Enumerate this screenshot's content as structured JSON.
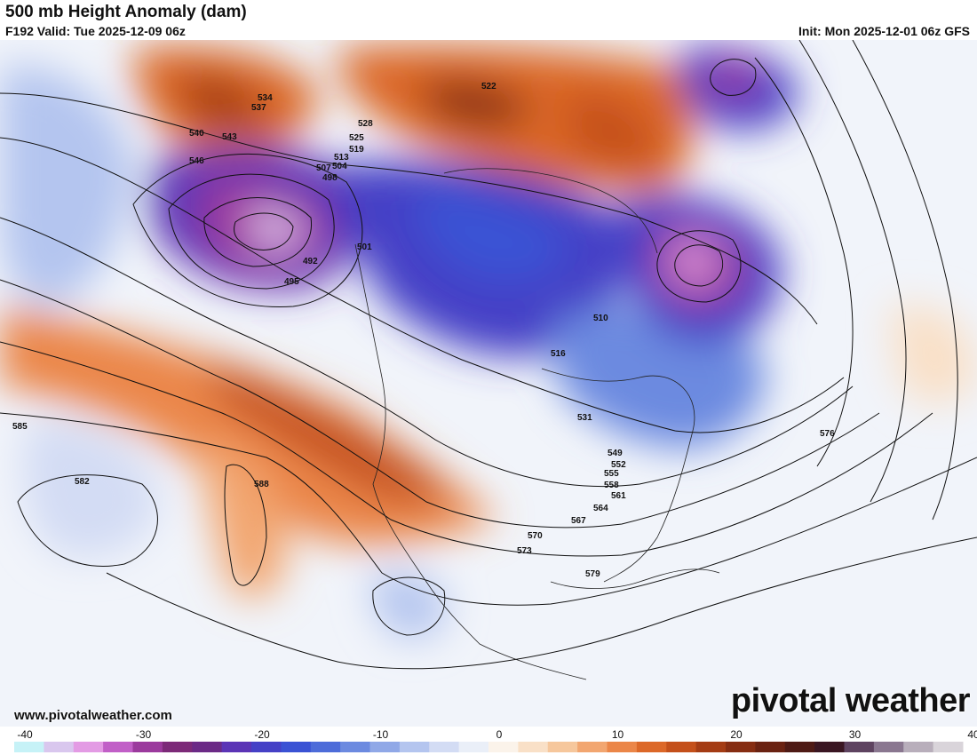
{
  "header": {
    "title": "500 mb Height Anomaly (dam)",
    "valid": "F192 Valid: Tue 2025-12-09 06z",
    "init": "Init: Mon 2025-12-01 06z GFS"
  },
  "footer": {
    "site": "www.pivotalweather.com",
    "brand": "pivotal weather"
  },
  "colorbar": {
    "ticks": [
      "-40",
      "-30",
      "-20",
      "-10",
      "0",
      "10",
      "20",
      "30",
      "40"
    ],
    "colors": [
      "#c6f2f7",
      "#d9c7ee",
      "#e39be4",
      "#c15fc7",
      "#9b3a9d",
      "#7c2a78",
      "#6b2a86",
      "#5b34b6",
      "#4540c6",
      "#3a52d4",
      "#4d6cd9",
      "#6c8ae0",
      "#90a8e7",
      "#b4c5ef",
      "#d3dcf4",
      "#eaeff8",
      "#fbf3ea",
      "#f9e0c7",
      "#f6c79c",
      "#f2a670",
      "#eb8648",
      "#dc6828",
      "#c4501a",
      "#a43c14",
      "#862d12",
      "#6a2212",
      "#4e1a15",
      "#3a1622",
      "#5e4360",
      "#8a7790",
      "#b8aebb",
      "#d9d4da"
    ]
  },
  "map": {
    "contour_labels": [
      {
        "text": "534"
      },
      {
        "text": "537"
      },
      {
        "text": "540"
      },
      {
        "text": "543"
      },
      {
        "text": "546"
      },
      {
        "text": "528"
      },
      {
        "text": "525"
      },
      {
        "text": "522"
      },
      {
        "text": "519"
      },
      {
        "text": "513"
      },
      {
        "text": "507"
      },
      {
        "text": "504"
      },
      {
        "text": "498"
      },
      {
        "text": "492"
      },
      {
        "text": "495"
      },
      {
        "text": "501"
      },
      {
        "text": "510"
      },
      {
        "text": "516"
      },
      {
        "text": "531"
      },
      {
        "text": "549"
      },
      {
        "text": "552"
      },
      {
        "text": "555"
      },
      {
        "text": "558"
      },
      {
        "text": "561"
      },
      {
        "text": "564"
      },
      {
        "text": "567"
      },
      {
        "text": "570"
      },
      {
        "text": "573"
      },
      {
        "text": "576"
      },
      {
        "text": "579"
      },
      {
        "text": "582"
      },
      {
        "text": "585"
      },
      {
        "text": "588"
      }
    ]
  }
}
